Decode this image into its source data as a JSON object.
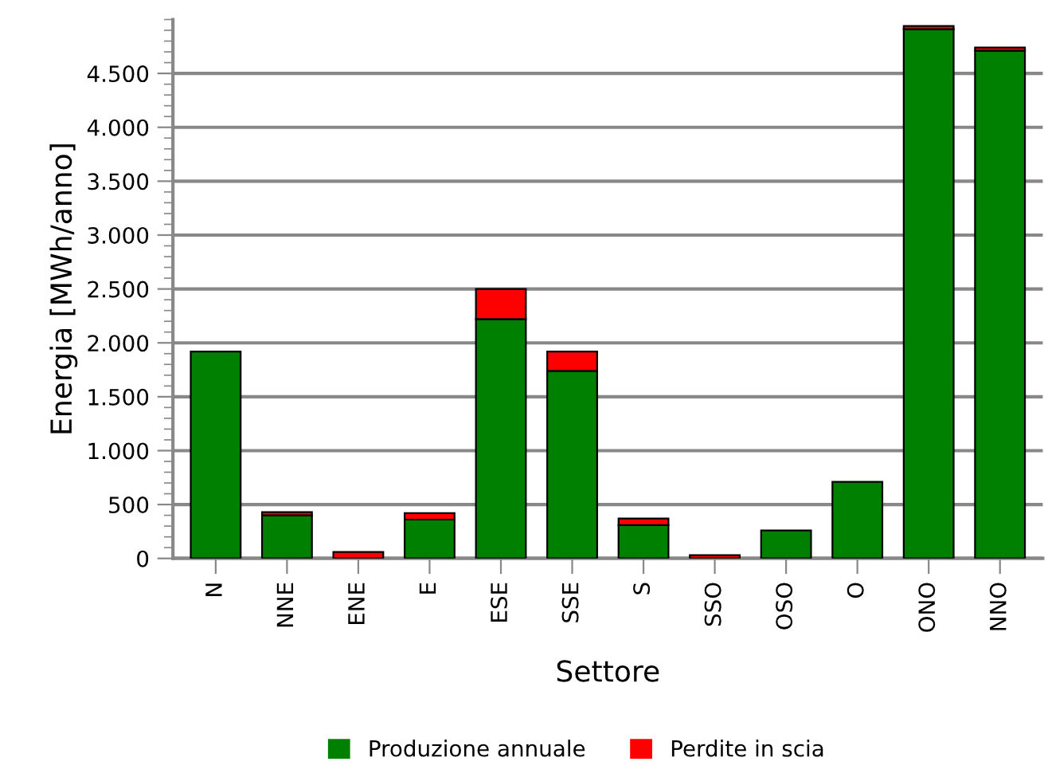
{
  "chart_data": {
    "type": "bar",
    "stacked": true,
    "xlabel": "Settore",
    "ylabel": "Energia [MWh/anno]",
    "categories": [
      "N",
      "NNE",
      "ENE",
      "E",
      "ESE",
      "SSE",
      "S",
      "SSO",
      "OSO",
      "O",
      "ONO",
      "NNO"
    ],
    "series": [
      {
        "name": "Produzione annuale",
        "color": "#008000",
        "values": [
          1920,
          400,
          null,
          360,
          2220,
          1740,
          310,
          null,
          260,
          710,
          4910,
          4710
        ]
      },
      {
        "name": "Perdite in scia",
        "color": "#ff0000",
        "values": [
          null,
          30,
          60,
          60,
          280,
          180,
          60,
          30,
          null,
          null,
          30,
          30
        ]
      }
    ],
    "ylim": [
      0,
      5000
    ],
    "yticks": [
      0,
      {
        "value": 500,
        "label": "500"
      },
      {
        "value": 1000,
        "label": "1.000"
      },
      {
        "value": 1500,
        "label": "1.500"
      },
      {
        "value": 2000,
        "label": "2.000"
      },
      {
        "value": 2500,
        "label": "2.500"
      },
      {
        "value": 3000,
        "label": "3.000"
      },
      {
        "value": 3500,
        "label": "3.500"
      },
      {
        "value": 4000,
        "label": "4.000"
      },
      {
        "value": 4500,
        "label": "4.500"
      }
    ],
    "grid": "y",
    "legend": "bottom"
  }
}
